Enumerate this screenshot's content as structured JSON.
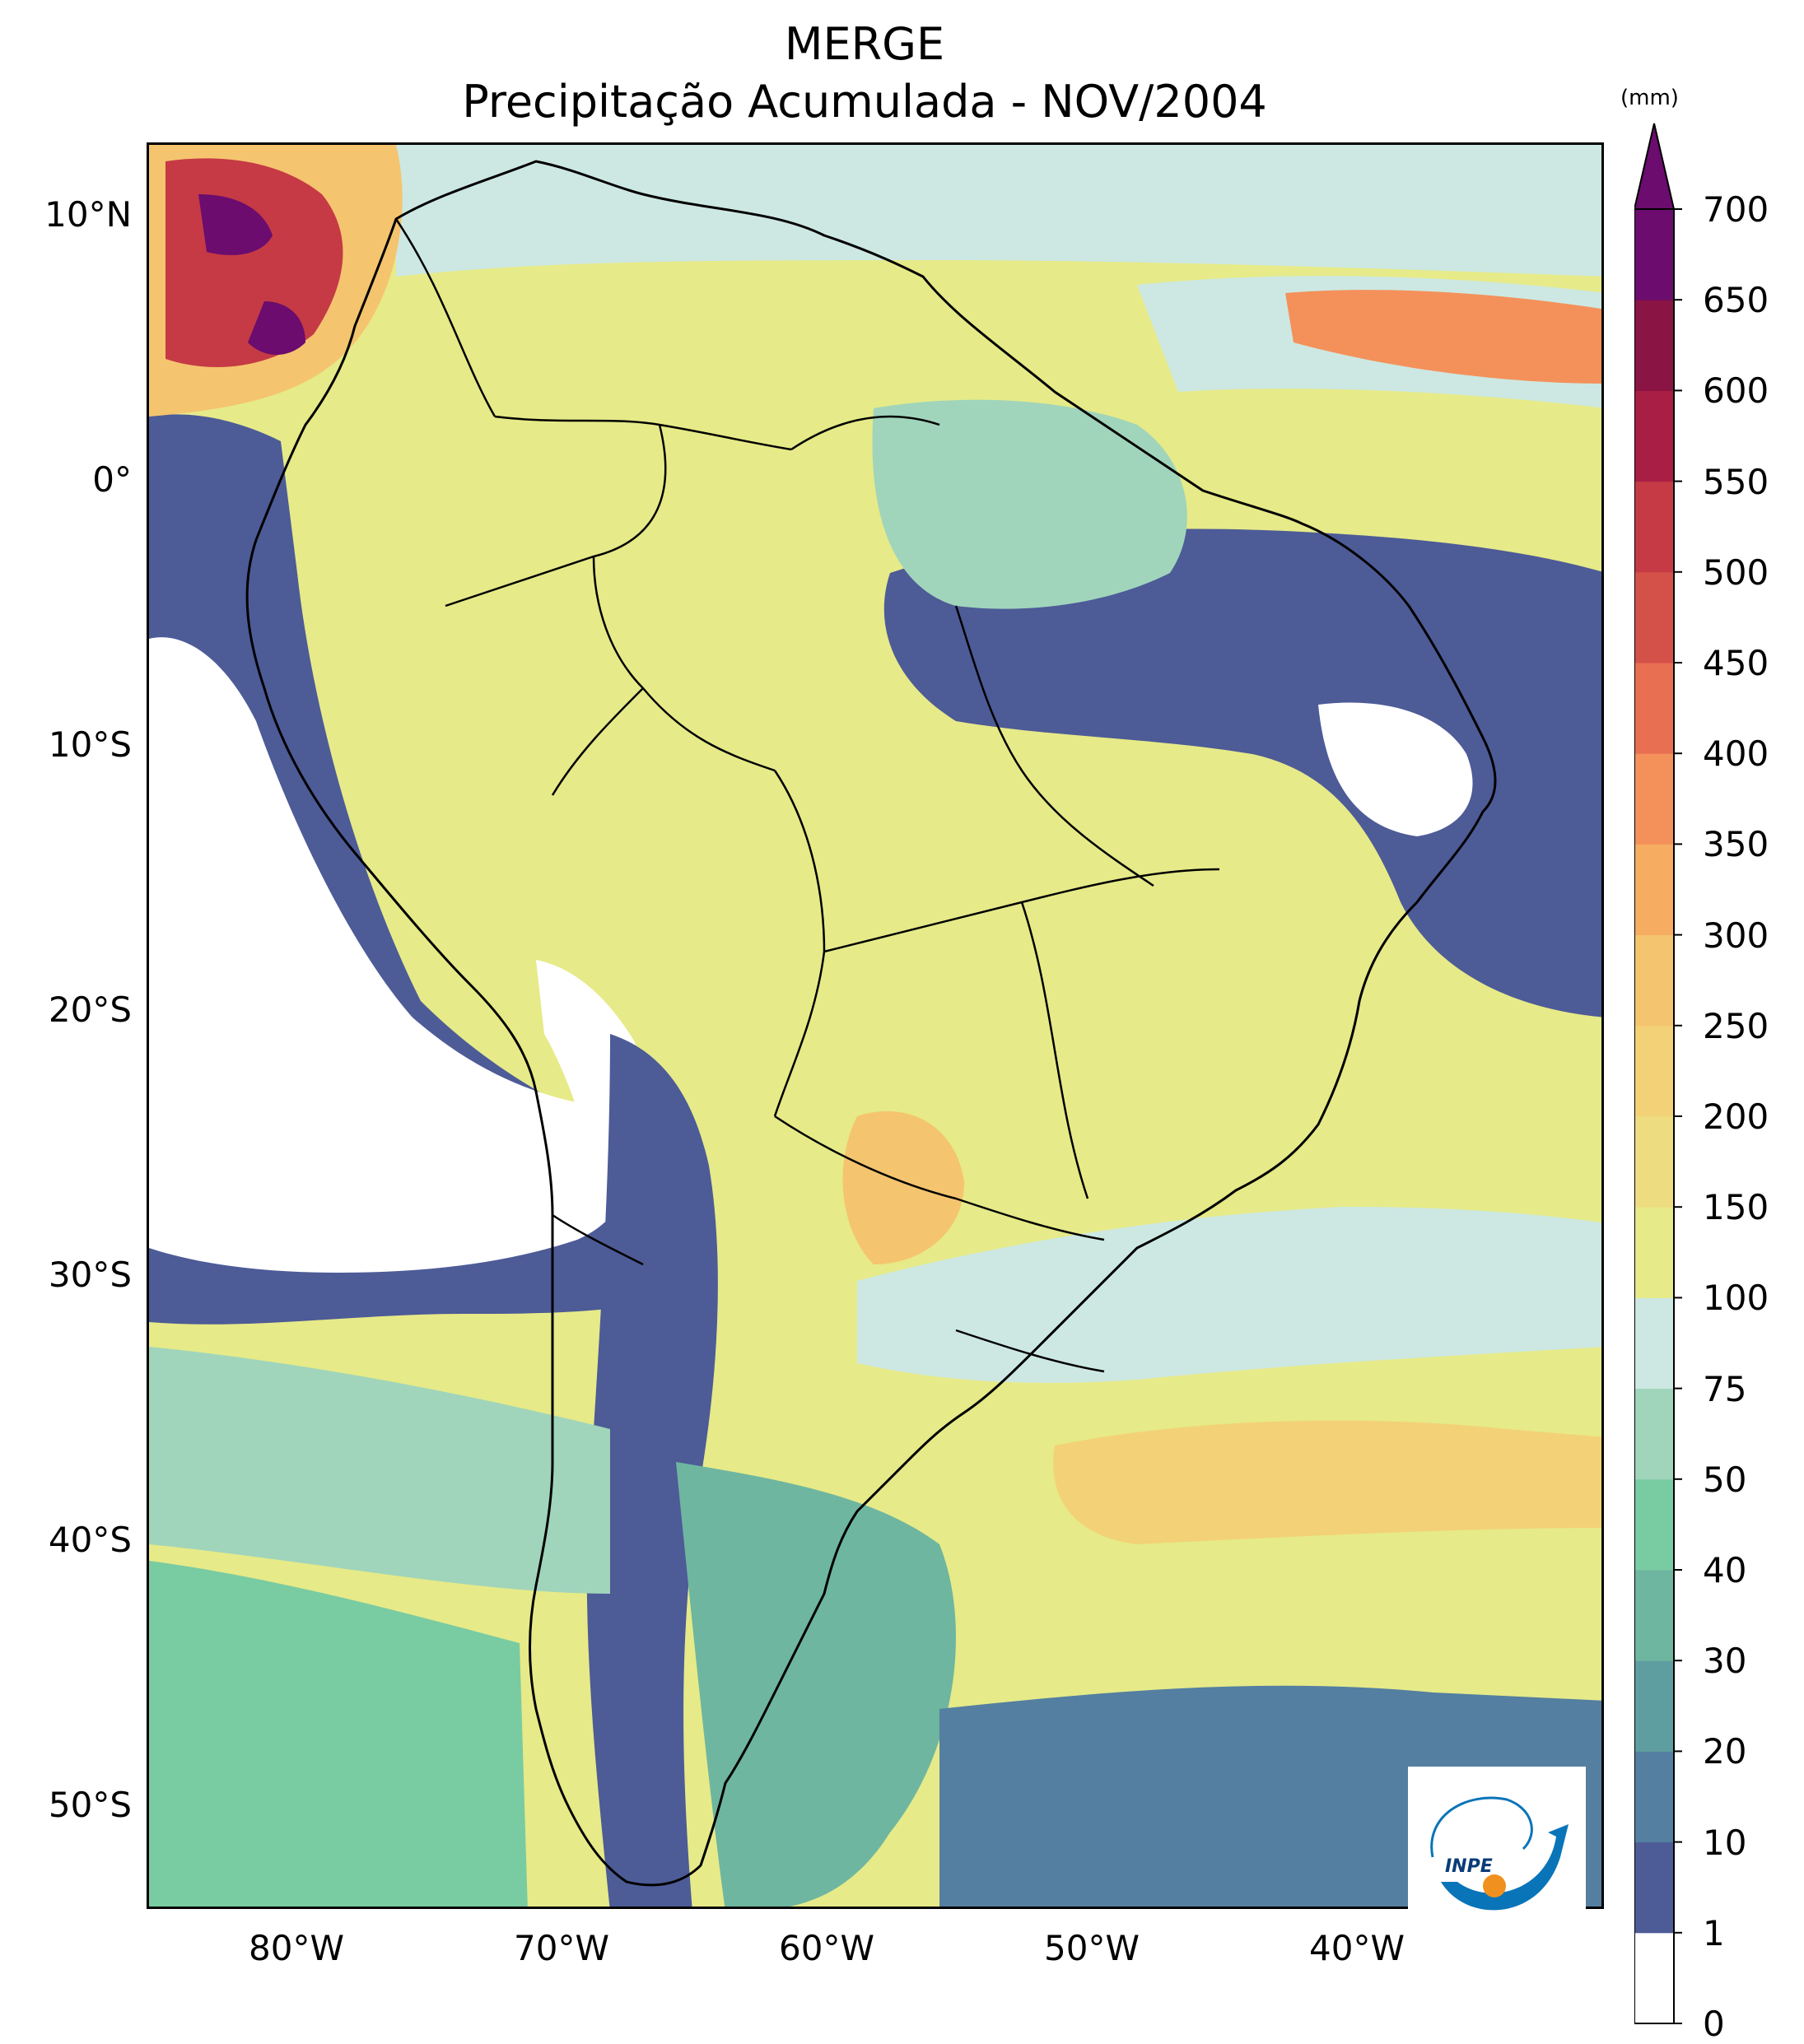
{
  "title": "MERGE",
  "subtitle": "Precipitação Acumulada - NOV/2004",
  "map": {
    "region": "South America",
    "lon_range": [
      -85,
      -32
    ],
    "lat_range": [
      -56,
      12
    ],
    "lat_ticks": [
      "10°N",
      "0°",
      "10°S",
      "20°S",
      "30°S",
      "40°S",
      "50°S"
    ],
    "lon_ticks": [
      "80°W",
      "70°W",
      "60°W",
      "50°W",
      "40°W"
    ]
  },
  "colorbar": {
    "unit": "(mm)",
    "levels": [
      "0",
      "1",
      "10",
      "20",
      "30",
      "40",
      "50",
      "75",
      "100",
      "150",
      "200",
      "250",
      "300",
      "350",
      "400",
      "450",
      "500",
      "550",
      "600",
      "650",
      "700"
    ],
    "colors": [
      "#ffffff",
      "#4d5b97",
      "#547fa1",
      "#5f9ea0",
      "#6eb6a0",
      "#79cba2",
      "#a0d5bb",
      "#cde8e2",
      "#e6ea88",
      "#eddd80",
      "#f3d277",
      "#f5c46f",
      "#f6ad62",
      "#f4915a",
      "#e96f53",
      "#d45149",
      "#c53a45",
      "#a81e44",
      "#8a1443",
      "#6b0c6e"
    ],
    "extend_color": "#6b0c6e"
  },
  "logo": {
    "text": "INPE"
  }
}
